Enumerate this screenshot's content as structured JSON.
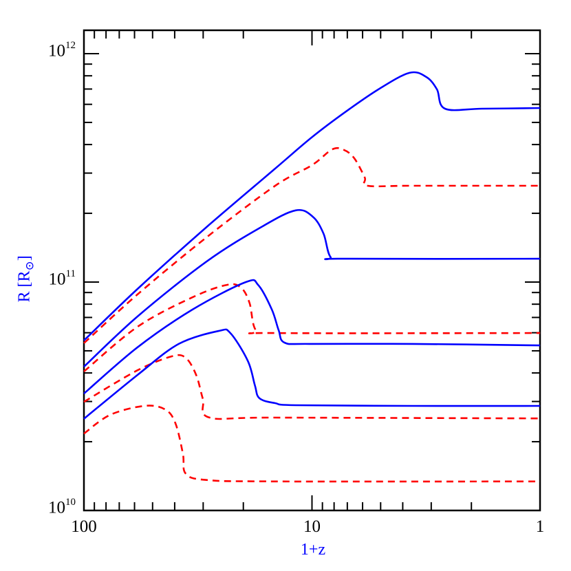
{
  "chart_data": {
    "type": "line",
    "title": "",
    "xlabel": "1+z",
    "ylabel": "R [R",
    "ylabel_sub": "⊙",
    "ylabel_end": "]",
    "x_scale": "log",
    "y_scale": "log",
    "x_reversed": true,
    "xlim": [
      100,
      1
    ],
    "ylim": [
      10000000000.0,
      1100000000000.0
    ],
    "grid": false,
    "x_ticks": [
      {
        "value": 100,
        "label": "100"
      },
      {
        "value": 10,
        "label": "10"
      },
      {
        "value": 1,
        "label": "1"
      }
    ],
    "y_ticks": [
      {
        "value": 10000000000.0,
        "base": "10",
        "exp": "10"
      },
      {
        "value": 100000000000.0,
        "base": "10",
        "exp": "11"
      },
      {
        "value": 1000000000000.0,
        "base": "10",
        "exp": "12"
      }
    ],
    "colors": {
      "solid": "#0000ff",
      "dashed": "#ff0000",
      "axis": "#000000"
    },
    "series": [
      {
        "style": "solid",
        "color": "#0000ff",
        "points": [
          [
            100,
            55500000000.0
          ],
          [
            58.2,
            93300000000.0
          ],
          [
            29.0,
            174000000000.0
          ],
          [
            14.5,
            314000000000.0
          ],
          [
            10,
            431000000000.0
          ],
          [
            7.24,
            550000000000.0
          ],
          [
            5.12,
            697000000000.0
          ],
          [
            3.74,
            824000000000.0
          ],
          [
            3.15,
            790000000000.0
          ],
          [
            2.83,
            697000000000.0
          ],
          [
            2.61,
            574000000000.0
          ],
          [
            1.8,
            574000000000.0
          ],
          [
            1,
            578000000000.0
          ]
        ]
      },
      {
        "style": "dashed",
        "color": "#ff0000",
        "points": [
          [
            100,
            54000000000.0
          ],
          [
            58.2,
            88300000000.0
          ],
          [
            29.0,
            157000000000.0
          ],
          [
            14.5,
            264000000000.0
          ],
          [
            10,
            325000000000.0
          ],
          [
            8.15,
            381000000000.0
          ],
          [
            7.24,
            379000000000.0
          ],
          [
            6.52,
            348000000000.0
          ],
          [
            5.87,
            287000000000.0
          ],
          [
            5.71,
            264000000000.0
          ],
          [
            3.61,
            264000000000.0
          ],
          [
            1,
            264000000000.0
          ]
        ]
      },
      {
        "style": "solid",
        "color": "#0000ff",
        "points": [
          [
            100,
            42600000000.0
          ],
          [
            58.2,
            70700000000.0
          ],
          [
            29.0,
            123000000000.0
          ],
          [
            16.7,
            174000000000.0
          ],
          [
            11.8,
            206000000000.0
          ],
          [
            9.9,
            193000000000.0
          ],
          [
            8.9,
            163000000000.0
          ],
          [
            8.3,
            129000000000.0
          ],
          [
            7.24,
            126500000000.0
          ],
          [
            1,
            126500000000.0
          ]
        ]
      },
      {
        "style": "dashed",
        "color": "#ff0000",
        "points": [
          [
            100,
            40600000000.0
          ],
          [
            58.2,
            63700000000.0
          ],
          [
            33.4,
            85800000000.0
          ],
          [
            23.6,
            97200000000.0
          ],
          [
            20.5,
            94600000000.0
          ],
          [
            18.8,
            81200000000.0
          ],
          [
            17.6,
            61500000000.0
          ],
          [
            14.5,
            59800000000.0
          ],
          [
            1,
            59800000000.0
          ]
        ]
      },
      {
        "style": "solid",
        "color": "#0000ff",
        "points": [
          [
            100,
            32500000000.0
          ],
          [
            58.2,
            51800000000.0
          ],
          [
            33.4,
            75800000000.0
          ],
          [
            19.5,
            100000000000.0
          ],
          [
            17.2,
            97000000000.0
          ],
          [
            15.0,
            75800000000.0
          ],
          [
            14.0,
            61500000000.0
          ],
          [
            13.2,
            54300000000.0
          ],
          [
            10.25,
            53600000000.0
          ],
          [
            3.61,
            53600000000.0
          ],
          [
            1,
            52800000000.0
          ]
        ]
      },
      {
        "style": "dashed",
        "color": "#ff0000",
        "points": [
          [
            100,
            29900000000.0
          ],
          [
            58.2,
            41100000000.0
          ],
          [
            41.1,
            47300000000.0
          ],
          [
            35.8,
            46600000000.0
          ],
          [
            32.2,
            39200000000.0
          ],
          [
            30.1,
            30800000000.0
          ],
          [
            28.1,
            25500000000.0
          ],
          [
            14.5,
            25500000000.0
          ],
          [
            1,
            25300000000.0
          ]
        ]
      },
      {
        "style": "solid",
        "color": "#0000ff",
        "points": [
          [
            100,
            25200000000.0
          ],
          [
            58.2,
            39200000000.0
          ],
          [
            38.4,
            53600000000.0
          ],
          [
            25.6,
            61100000000.0
          ],
          [
            22.8,
            59800000000.0
          ],
          [
            19.1,
            45100000000.0
          ],
          [
            17.8,
            35300000000.0
          ],
          [
            17.0,
            31000000000.0
          ],
          [
            14.5,
            29500000000.0
          ],
          [
            11.8,
            28900000000.0
          ],
          [
            3.61,
            28700000000.0
          ],
          [
            1,
            28700000000.0
          ]
        ]
      },
      {
        "style": "dashed",
        "color": "#ff0000",
        "points": [
          [
            100,
            21700000000.0
          ],
          [
            76.8,
            26200000000.0
          ],
          [
            54.3,
            28700000000.0
          ],
          [
            44.1,
            27700000000.0
          ],
          [
            39.7,
            24100000000.0
          ],
          [
            36.8,
            17700000000.0
          ],
          [
            35.8,
            14500000000.0
          ],
          [
            29.0,
            13600000000.0
          ],
          [
            14.5,
            13400000000.0
          ],
          [
            1,
            13400000000.0
          ]
        ]
      }
    ]
  }
}
